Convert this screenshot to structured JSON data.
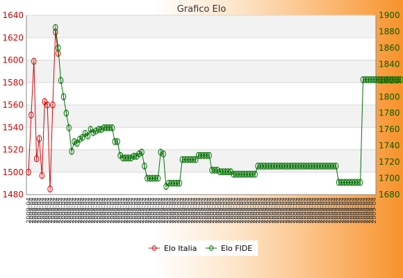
{
  "chart_data": {
    "type": "line",
    "title": "Grafico Elo",
    "colors": {
      "italia": "#dd0000",
      "fide": "#007000",
      "plot_bg_band": "#f2f2f2",
      "grid": "#d8d8d8"
    },
    "left_axis": {
      "ylim": [
        1480,
        1640
      ],
      "ticks": [
        1480,
        1500,
        1520,
        1540,
        1560,
        1580,
        1600,
        1620,
        1640
      ]
    },
    "right_axis": {
      "ylim": [
        1680,
        1900
      ],
      "ticks": [
        1680,
        1700,
        1720,
        1740,
        1760,
        1780,
        1800,
        1820,
        1840,
        1860,
        1880,
        1900
      ]
    },
    "x_tick_label": "2009-04",
    "x_count": 129,
    "legend_position": "bottom-center",
    "series": [
      {
        "name": "Elo Italia",
        "axis": "left",
        "values": [
          1500,
          1551,
          1599,
          1512,
          1530,
          1497,
          1563,
          1560,
          1485,
          1560,
          1625,
          1606
        ]
      },
      {
        "name": "Elo FIDE",
        "axis": "right",
        "start_index": 10,
        "values": [
          1885,
          1860,
          1820,
          1800,
          1780,
          1762,
          1733,
          1745,
          1743,
          1748,
          1750,
          1755,
          1752,
          1760,
          1756,
          1758,
          1760,
          1760,
          1762,
          1762,
          1762,
          1762,
          1745,
          1745,
          1728,
          1725,
          1725,
          1725,
          1725,
          1727,
          1727,
          1730,
          1732,
          1715,
          1700,
          1700,
          1700,
          1700,
          1700,
          1732,
          1730,
          1690,
          1694,
          1694,
          1694,
          1694,
          1694,
          1723,
          1723,
          1723,
          1723,
          1723,
          1723,
          1728,
          1728,
          1728,
          1728,
          1728,
          1710,
          1710,
          1710,
          1708,
          1708,
          1708,
          1708,
          1708,
          1705,
          1705,
          1705,
          1705,
          1705,
          1705,
          1705,
          1705,
          1705,
          1715,
          1715,
          1715,
          1715,
          1715,
          1715,
          1715,
          1715,
          1715,
          1715,
          1715,
          1715,
          1715,
          1715,
          1715,
          1715,
          1715,
          1715,
          1715,
          1715,
          1715,
          1715,
          1715,
          1715,
          1715,
          1715,
          1715,
          1715,
          1715,
          1715,
          1695,
          1695,
          1695,
          1695,
          1695,
          1695,
          1695,
          1695,
          1695,
          1821,
          1821,
          1821,
          1821,
          1821,
          1821,
          1821,
          1821,
          1821,
          1821,
          1821,
          1821,
          1821,
          1821,
          1821
        ]
      }
    ]
  }
}
